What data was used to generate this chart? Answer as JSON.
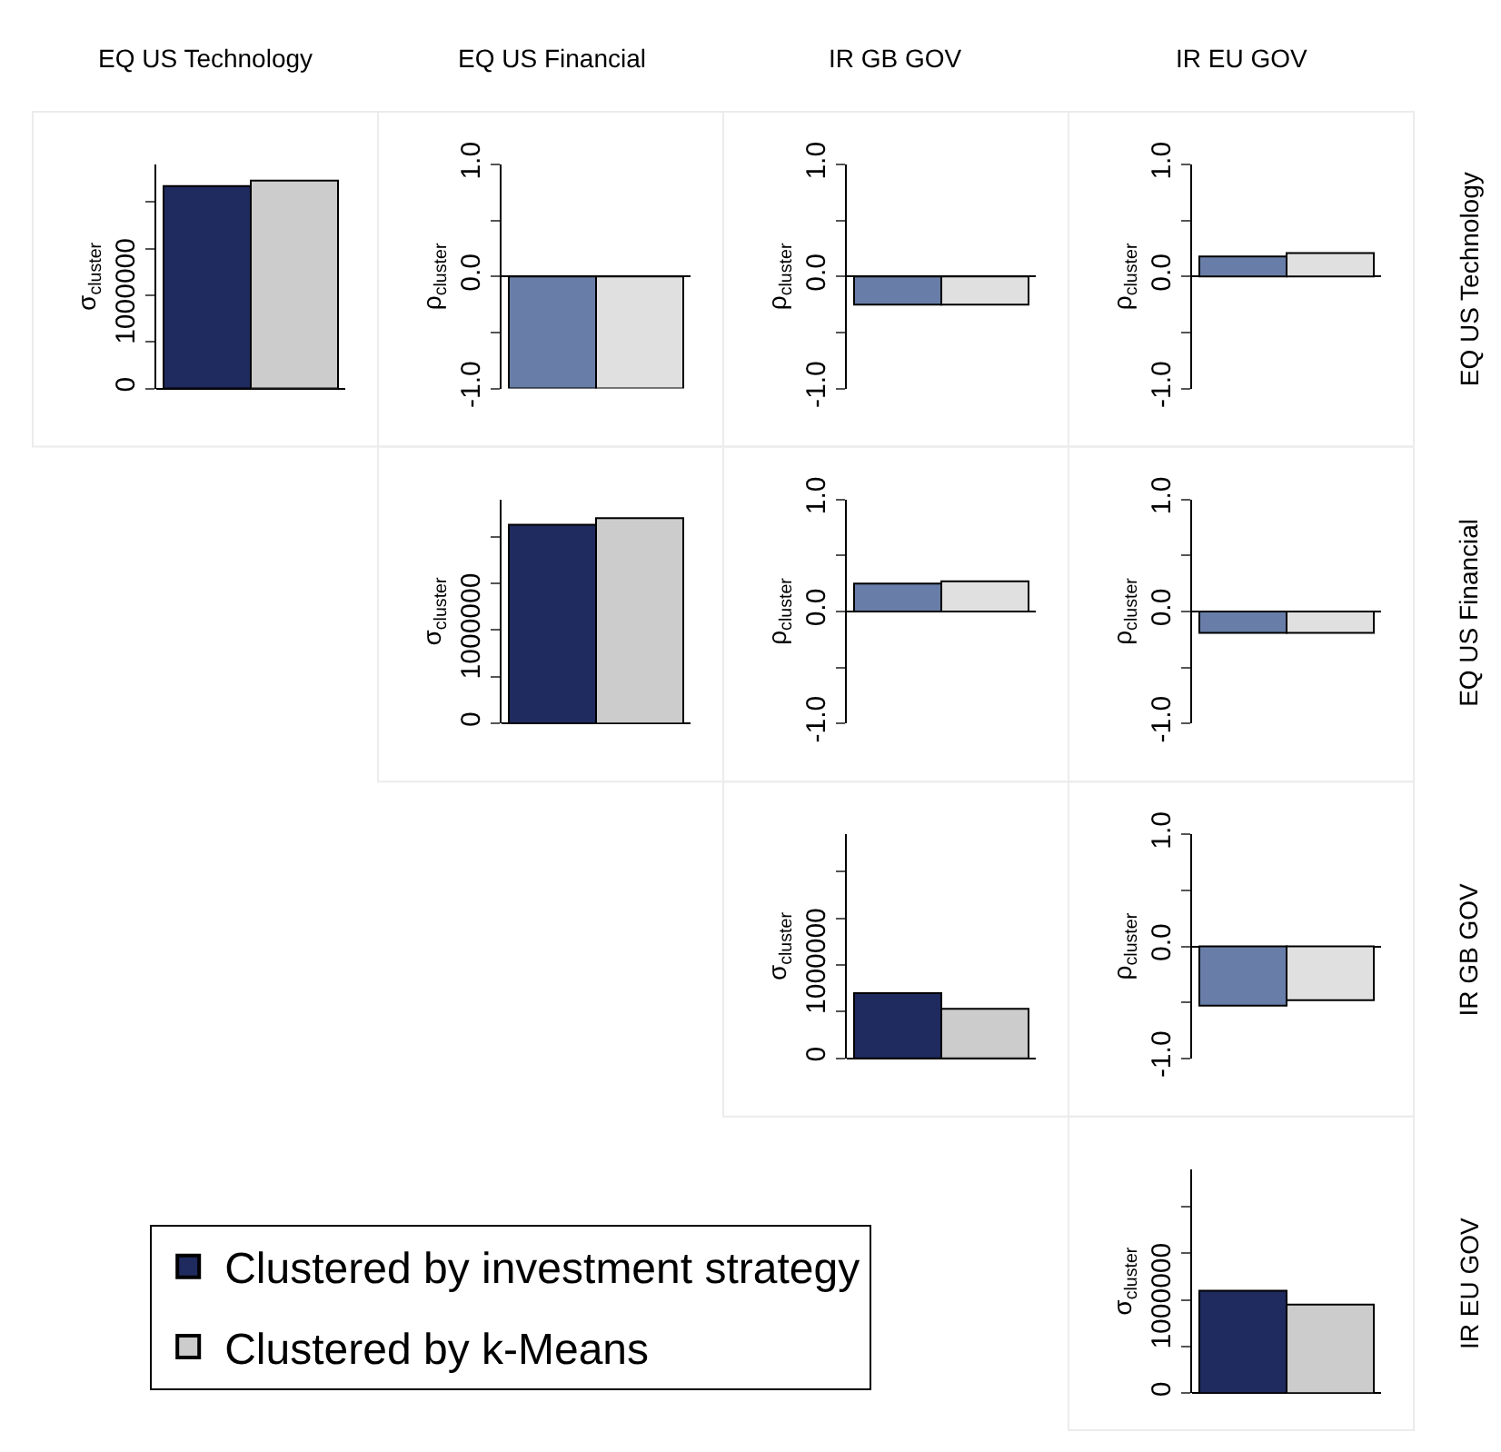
{
  "chart_data": [
    {
      "type": "bar",
      "title": "EQ US Technology",
      "ylabel": "σ$_{cluster}$",
      "categories": [
        null
      ],
      "ylim": [
        0,
        2400000
      ],
      "yticks": [
        0,
        {
          "value": 500000,
          "label": null
        },
        1000000,
        {
          "value": 1500000,
          "label": null
        },
        {
          "value": 2000000,
          "label": null
        }
      ],
      "series": [
        {
          "color": "#1f2a5e",
          "values": [
            2170000
          ]
        },
        {
          "color": "#cccccc",
          "values": [
            2230000
          ]
        }
      ]
    },
    {
      "type": "bar",
      "title": "EQ US Financial",
      "ylabel": "ρ$_{cluster}$",
      "categories": [
        null
      ],
      "ylim": [
        -1,
        1
      ],
      "yticks": [
        {
          "value": -1,
          "label": "-1.0"
        },
        {
          "value": -0.5,
          "label": null
        },
        {
          "value": 0,
          "label": "0.0"
        },
        {
          "value": 0.5,
          "label": null
        },
        {
          "value": 1,
          "label": "1.0"
        }
      ],
      "series": [
        {
          "color": "#687ea8",
          "values": [
            -1.0
          ]
        },
        {
          "color": "#e0e0e0",
          "values": [
            -1.0
          ]
        }
      ]
    },
    {
      "type": "bar",
      "title": "IR GB GOV",
      "ylabel": "ρ$_{cluster}$",
      "categories": [
        null
      ],
      "ylim": [
        -1,
        1
      ],
      "yticks": [
        {
          "value": -1,
          "label": "-1.0"
        },
        {
          "value": -0.5,
          "label": null
        },
        {
          "value": 0,
          "label": "0.0"
        },
        {
          "value": 0.5,
          "label": null
        },
        {
          "value": 1,
          "label": "1.0"
        }
      ],
      "series": [
        {
          "color": "#687ea8",
          "values": [
            -0.25
          ]
        },
        {
          "color": "#e0e0e0",
          "values": [
            -0.25
          ]
        }
      ]
    },
    {
      "type": "bar",
      "title": "IR EU GOV",
      "ylabel": "ρ$_{cluster}$",
      "categories": [
        null
      ],
      "ylim": [
        -1,
        1
      ],
      "yticks": [
        {
          "value": -1,
          "label": "-1.0"
        },
        {
          "value": -0.5,
          "label": null
        },
        {
          "value": 0,
          "label": "0.0"
        },
        {
          "value": 0.5,
          "label": null
        },
        {
          "value": 1,
          "label": "1.0"
        }
      ],
      "annotations": [
        "EQ US Technology"
      ],
      "series": [
        {
          "color": "#687ea8",
          "values": [
            0.18
          ]
        },
        {
          "color": "#e0e0e0",
          "values": [
            0.21
          ]
        }
      ]
    },
    {
      "type": "bar",
      "ylabel": "σ$_{cluster}$",
      "categories": [
        null
      ],
      "ylim": [
        0,
        2400000
      ],
      "yticks": [
        0,
        {
          "value": 500000,
          "label": null
        },
        1000000,
        {
          "value": 1500000,
          "label": null
        },
        {
          "value": 2000000,
          "label": null
        }
      ],
      "series": [
        {
          "color": "#1f2a5e",
          "values": [
            2130000
          ]
        },
        {
          "color": "#cccccc",
          "values": [
            2200000
          ]
        }
      ]
    },
    {
      "type": "bar",
      "ylabel": "ρ$_{cluster}$",
      "categories": [
        null
      ],
      "ylim": [
        -1,
        1
      ],
      "yticks": [
        {
          "value": -1,
          "label": "-1.0"
        },
        {
          "value": -0.5,
          "label": null
        },
        {
          "value": 0,
          "label": "0.0"
        },
        {
          "value": 0.5,
          "label": null
        },
        {
          "value": 1,
          "label": "1.0"
        }
      ],
      "series": [
        {
          "color": "#687ea8",
          "values": [
            0.25
          ]
        },
        {
          "color": "#e0e0e0",
          "values": [
            0.27
          ]
        }
      ]
    },
    {
      "type": "bar",
      "ylabel": "ρ$_{cluster}$",
      "categories": [
        null
      ],
      "ylim": [
        -1,
        1
      ],
      "yticks": [
        {
          "value": -1,
          "label": "-1.0"
        },
        {
          "value": -0.5,
          "label": null
        },
        {
          "value": 0,
          "label": "0.0"
        },
        {
          "value": 0.5,
          "label": null
        },
        {
          "value": 1,
          "label": "1.0"
        }
      ],
      "annotations": [
        "EQ US Financial"
      ],
      "series": [
        {
          "color": "#687ea8",
          "values": [
            -0.19
          ]
        },
        {
          "color": "#e0e0e0",
          "values": [
            -0.19
          ]
        }
      ]
    },
    {
      "type": "bar",
      "ylabel": "σ$_{cluster}$",
      "categories": [
        null
      ],
      "ylim": [
        0,
        2400000
      ],
      "yticks": [
        0,
        {
          "value": 500000,
          "label": null
        },
        1000000,
        {
          "value": 1500000,
          "label": null
        },
        {
          "value": 2000000,
          "label": null
        }
      ],
      "legend": "bottom left",
      "series": [
        {
          "name": "Clustered by investment strategy",
          "color": "#1f2a5e",
          "values": [
            700000
          ]
        },
        {
          "name": "Clustered by k-Means",
          "color": "#cccccc",
          "values": [
            530000
          ]
        }
      ]
    },
    {
      "type": "bar",
      "ylabel": "ρ$_{cluster}$",
      "categories": [
        null
      ],
      "ylim": [
        -1,
        1
      ],
      "yticks": [
        {
          "value": -1,
          "label": "-1.0"
        },
        {
          "value": -0.5,
          "label": null
        },
        {
          "value": 0,
          "label": "0.0"
        },
        {
          "value": 0.5,
          "label": null
        },
        {
          "value": 1,
          "label": "1.0"
        }
      ],
      "annotations": [
        "IR GB GOV"
      ],
      "series": [
        {
          "color": "#687ea8",
          "values": [
            -0.53
          ]
        },
        {
          "color": "#e0e0e0",
          "values": [
            -0.48
          ]
        }
      ]
    },
    {
      "type": "bar",
      "ylabel": "σ$_{cluster}$",
      "categories": [
        null
      ],
      "ylim": [
        0,
        2400000
      ],
      "yticks": [
        0,
        {
          "value": 500000,
          "label": null
        },
        1000000,
        {
          "value": 1500000,
          "label": null
        },
        {
          "value": 2000000,
          "label": null
        }
      ],
      "annotations": [
        "IR EU GOV"
      ],
      "series": [
        {
          "color": "#1f2a5e",
          "values": [
            1100000
          ]
        },
        {
          "color": "#cccccc",
          "values": [
            950000
          ]
        }
      ]
    }
  ]
}
